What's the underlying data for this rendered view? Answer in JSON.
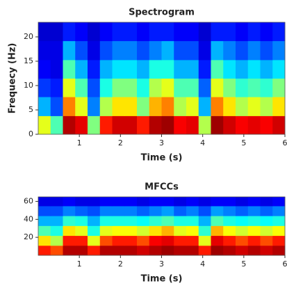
{
  "chart_data": [
    {
      "type": "heatmap",
      "title": "Spectrogram",
      "x_label": "Time (s)",
      "y_label": "Frequecy (Hz)",
      "xlim": [
        0,
        6
      ],
      "ylim": [
        0,
        23
      ],
      "xticks": [
        1,
        2,
        3,
        4,
        5,
        6
      ],
      "yticks": [
        0,
        5,
        10,
        15,
        20
      ],
      "x_bins": [
        0,
        0.3,
        0.6,
        0.9,
        1.2,
        1.5,
        1.8,
        2.1,
        2.4,
        2.7,
        3.0,
        3.3,
        3.6,
        3.9,
        4.2,
        4.5,
        4.8,
        5.1,
        5.4,
        5.7,
        6.0
      ],
      "y_bins": [
        0,
        3.8,
        7.7,
        11.5,
        15.3,
        19.2,
        23
      ],
      "colormap": "jet",
      "z": [
        [
          0.6,
          0.45,
          0.95,
          0.9,
          0.5,
          0.85,
          0.92,
          0.92,
          0.85,
          0.95,
          0.97,
          0.88,
          0.9,
          0.55,
          0.97,
          0.92,
          0.88,
          0.9,
          0.88,
          0.92
        ],
        [
          0.3,
          0.2,
          0.75,
          0.6,
          0.25,
          0.55,
          0.65,
          0.65,
          0.5,
          0.7,
          0.75,
          0.55,
          0.6,
          0.3,
          0.75,
          0.65,
          0.55,
          0.6,
          0.55,
          0.65
        ],
        [
          0.18,
          0.15,
          0.6,
          0.45,
          0.2,
          0.4,
          0.5,
          0.5,
          0.4,
          0.55,
          0.6,
          0.45,
          0.45,
          0.22,
          0.6,
          0.5,
          0.42,
          0.45,
          0.42,
          0.5
        ],
        [
          0.12,
          0.1,
          0.45,
          0.3,
          0.15,
          0.3,
          0.35,
          0.35,
          0.3,
          0.4,
          0.4,
          0.3,
          0.3,
          0.15,
          0.45,
          0.35,
          0.3,
          0.35,
          0.3,
          0.35
        ],
        [
          0.1,
          0.1,
          0.3,
          0.2,
          0.1,
          0.2,
          0.25,
          0.25,
          0.2,
          0.25,
          0.3,
          0.2,
          0.2,
          0.1,
          0.3,
          0.25,
          0.2,
          0.25,
          0.2,
          0.25
        ],
        [
          0.08,
          0.08,
          0.15,
          0.12,
          0.08,
          0.12,
          0.15,
          0.15,
          0.12,
          0.15,
          0.15,
          0.12,
          0.12,
          0.08,
          0.15,
          0.15,
          0.12,
          0.15,
          0.12,
          0.15
        ]
      ]
    },
    {
      "type": "heatmap",
      "title": "MFCCs",
      "x_label": "Time (s)",
      "xlim": [
        0,
        6
      ],
      "ylim": [
        0,
        65
      ],
      "xticks": [
        1,
        2,
        3,
        4,
        5,
        6
      ],
      "yticks": [
        20,
        40,
        60
      ],
      "x_bins": [
        0,
        0.3,
        0.6,
        0.9,
        1.2,
        1.5,
        1.8,
        2.1,
        2.4,
        2.7,
        3.0,
        3.3,
        3.6,
        3.9,
        4.2,
        4.5,
        4.8,
        5.1,
        5.4,
        5.7,
        6.0
      ],
      "y_bins": [
        0,
        11,
        22,
        33,
        44,
        55,
        65
      ],
      "colormap": "jet",
      "z": [
        [
          0.85,
          0.8,
          0.95,
          0.95,
          0.85,
          0.95,
          0.95,
          0.95,
          0.92,
          0.95,
          0.97,
          0.95,
          0.95,
          0.85,
          0.97,
          0.95,
          0.92,
          0.95,
          0.92,
          0.95
        ],
        [
          0.65,
          0.55,
          0.85,
          0.85,
          0.6,
          0.8,
          0.85,
          0.85,
          0.8,
          0.88,
          0.9,
          0.85,
          0.85,
          0.6,
          0.9,
          0.85,
          0.8,
          0.85,
          0.8,
          0.85
        ],
        [
          0.45,
          0.4,
          0.65,
          0.6,
          0.4,
          0.6,
          0.62,
          0.62,
          0.58,
          0.65,
          0.7,
          0.6,
          0.62,
          0.42,
          0.7,
          0.62,
          0.58,
          0.62,
          0.58,
          0.62
        ],
        [
          0.3,
          0.3,
          0.42,
          0.4,
          0.3,
          0.4,
          0.4,
          0.4,
          0.38,
          0.42,
          0.45,
          0.4,
          0.4,
          0.3,
          0.45,
          0.4,
          0.38,
          0.4,
          0.38,
          0.4
        ],
        [
          0.2,
          0.2,
          0.25,
          0.22,
          0.2,
          0.25,
          0.25,
          0.25,
          0.22,
          0.25,
          0.28,
          0.22,
          0.25,
          0.2,
          0.28,
          0.25,
          0.22,
          0.25,
          0.22,
          0.25
        ],
        [
          0.1,
          0.1,
          0.12,
          0.1,
          0.1,
          0.12,
          0.12,
          0.12,
          0.1,
          0.12,
          0.12,
          0.1,
          0.12,
          0.1,
          0.12,
          0.12,
          0.1,
          0.12,
          0.1,
          0.12
        ]
      ]
    }
  ]
}
